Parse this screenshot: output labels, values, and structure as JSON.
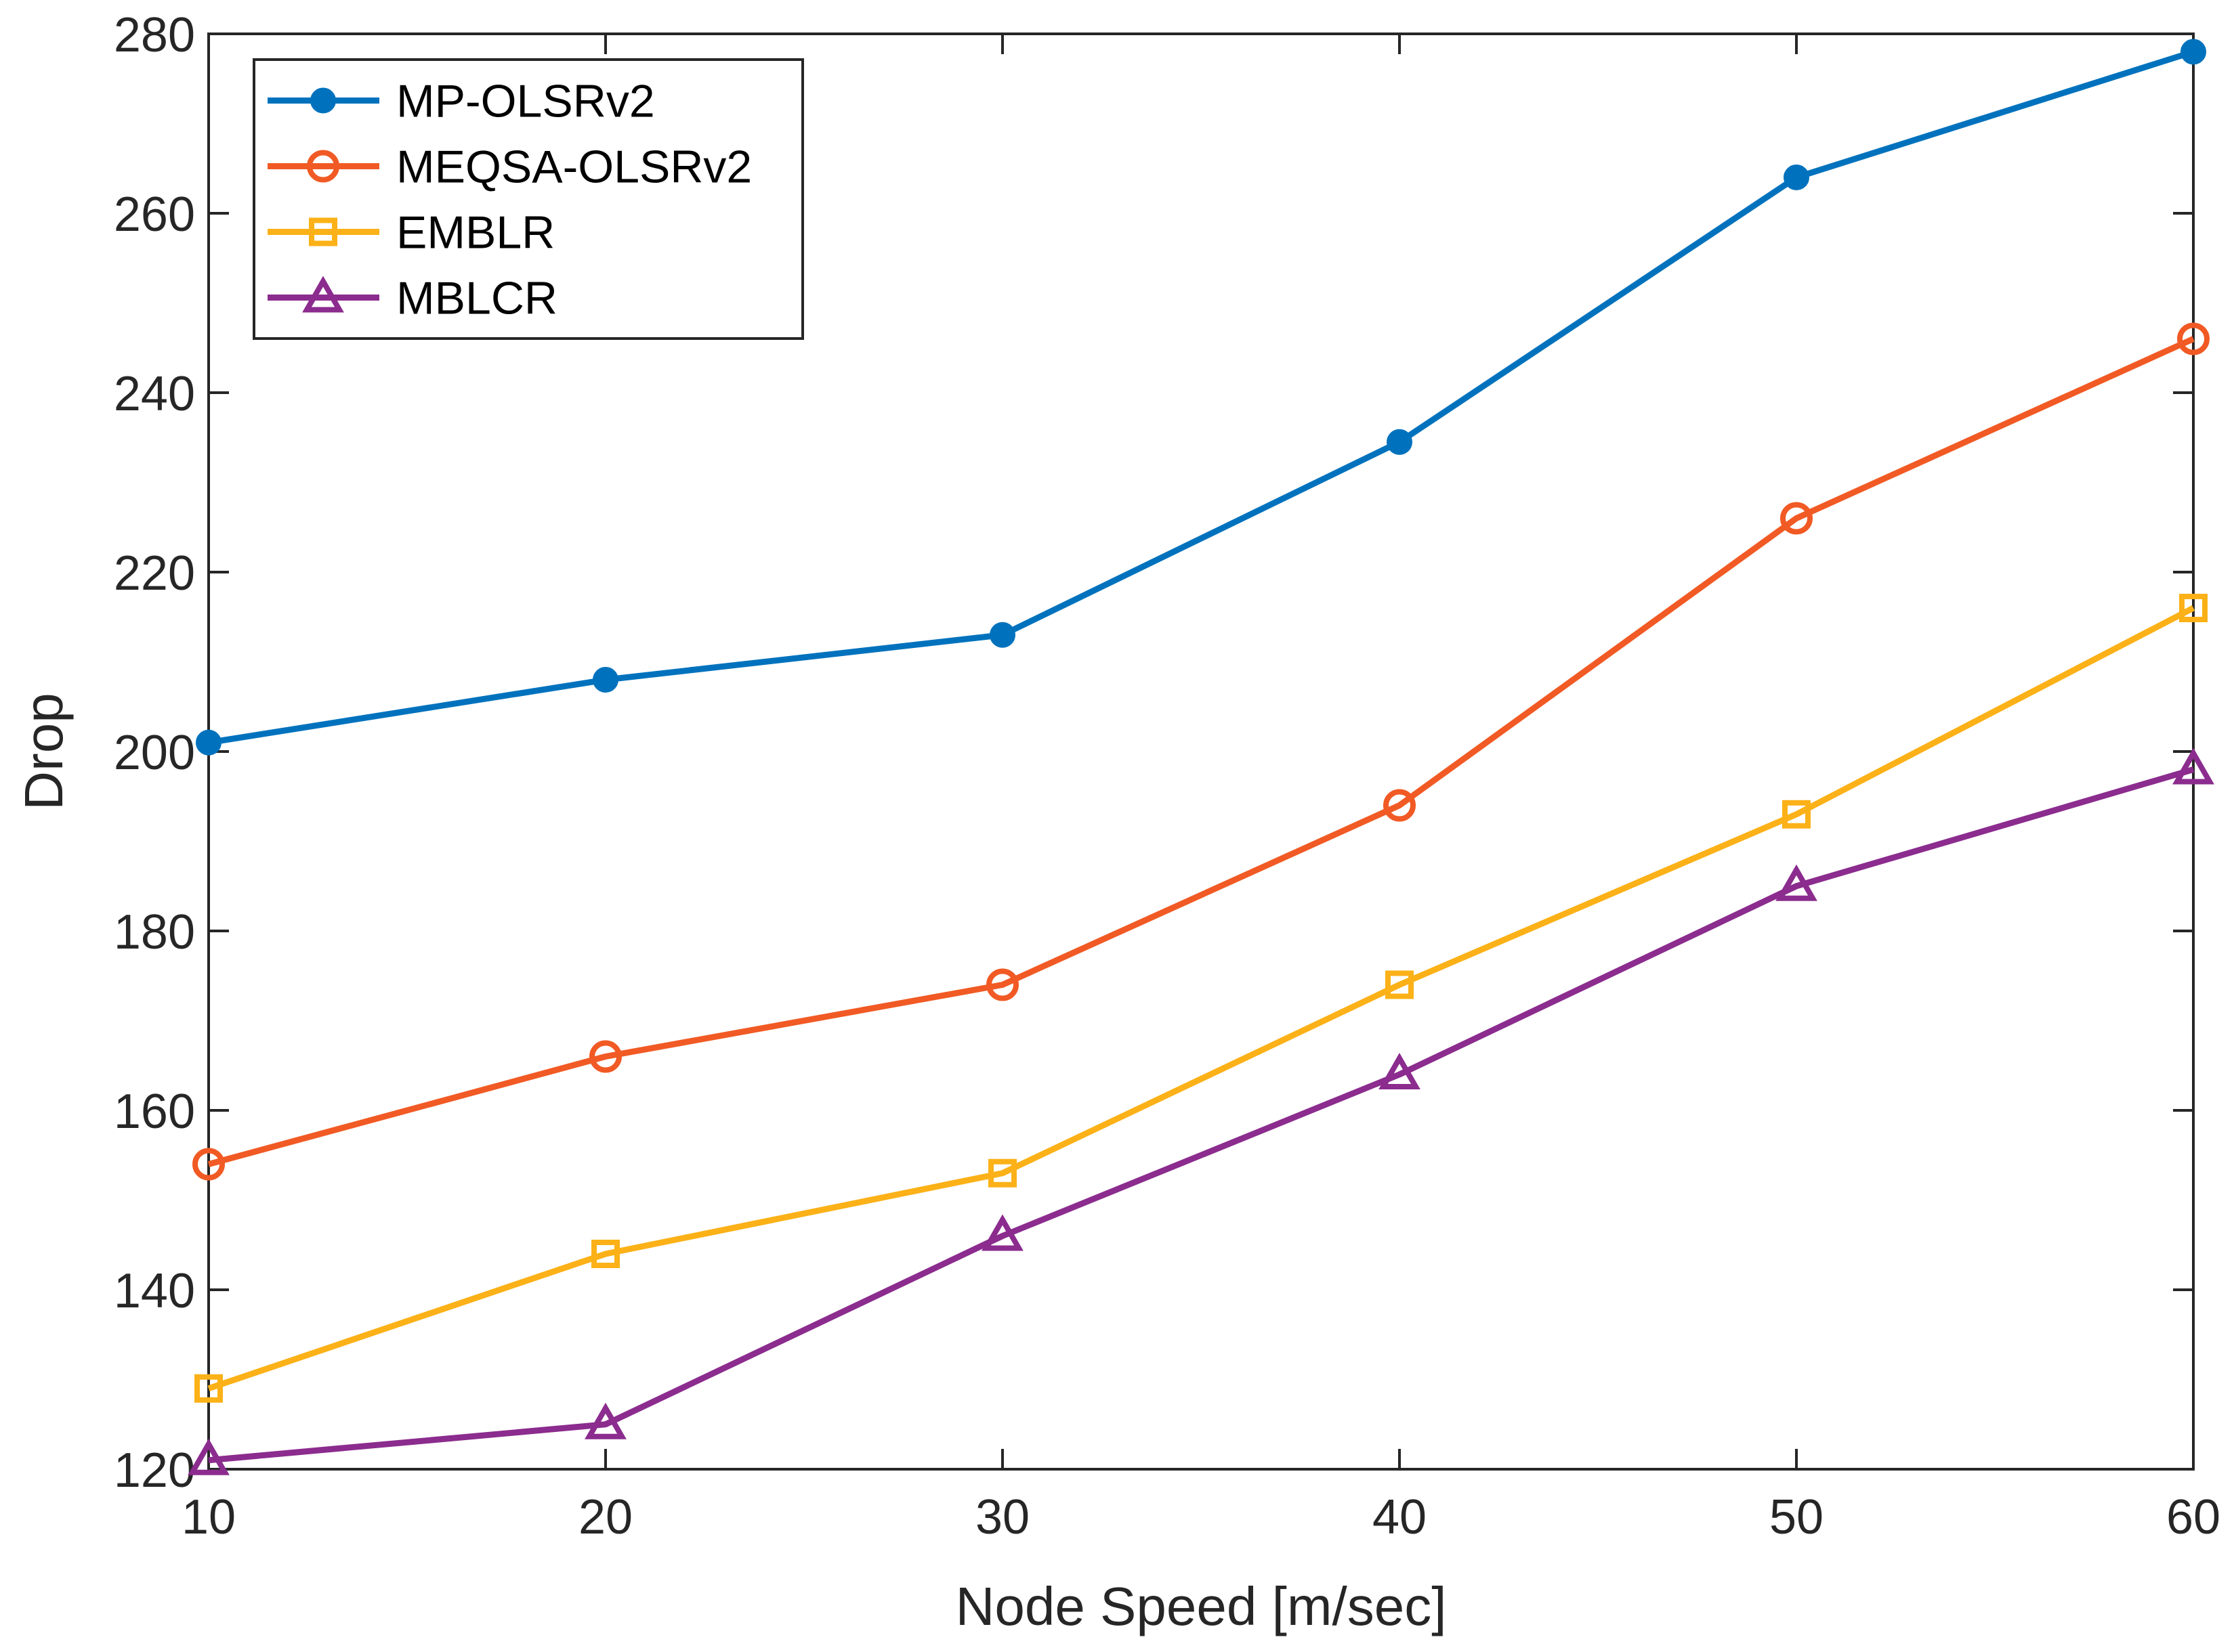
{
  "chart_data": {
    "type": "line",
    "title": "",
    "xlabel": "Node Speed [m/sec]",
    "ylabel": "Drop",
    "x": [
      10,
      20,
      30,
      40,
      50,
      60
    ],
    "xlim": [
      10,
      60
    ],
    "ylim": [
      120,
      280
    ],
    "xticks": [
      "10",
      "20",
      "30",
      "40",
      "50",
      "60"
    ],
    "yticks": [
      "120",
      "140",
      "160",
      "180",
      "200",
      "220",
      "240",
      "260",
      "280"
    ],
    "grid": false,
    "legend_position": "top-left",
    "series": [
      {
        "name": "MP-OLSRv2",
        "color": "#0072BD",
        "marker": "filled-circle",
        "values": [
          201,
          208,
          213,
          234.5,
          264,
          278
        ]
      },
      {
        "name": "MEQSA-OLSRv2",
        "color": "#F15A24",
        "marker": "open-circle",
        "values": [
          154,
          166,
          174,
          194,
          226,
          246
        ]
      },
      {
        "name": "EMBLR",
        "color": "#FBB117",
        "marker": "open-square",
        "values": [
          129,
          144,
          153,
          174,
          193,
          216
        ]
      },
      {
        "name": "MBLCR",
        "color": "#8B2C8E",
        "marker": "open-triangle",
        "values": [
          121,
          125,
          146,
          164,
          185,
          198
        ]
      }
    ]
  }
}
